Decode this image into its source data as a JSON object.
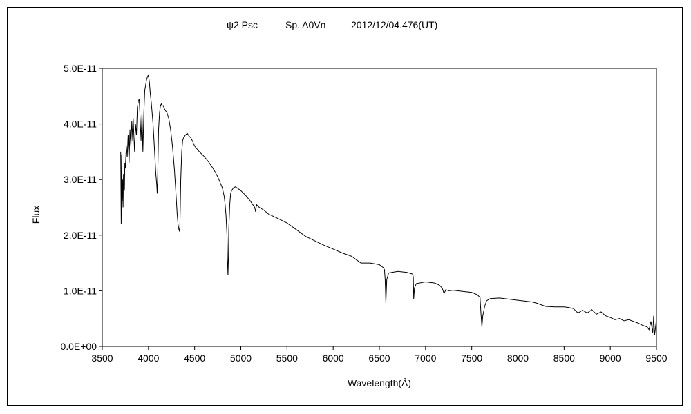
{
  "chart_data": {
    "type": "line",
    "title": "ψ2 Psc Sp. A0Vn 2012/12/04.476(UT)",
    "title_parts": [
      "ψ2 Psc",
      "Sp. A0Vn",
      "2012/12/04.476(UT)"
    ],
    "xlabel": "Wavelength(Å)",
    "ylabel": "Flux",
    "xlim": [
      3500,
      9500
    ],
    "ylim": [
      0,
      5e-11
    ],
    "xticks": [
      3500,
      4000,
      4500,
      5000,
      5500,
      6000,
      6500,
      7000,
      7500,
      8000,
      8500,
      9000,
      9500
    ],
    "xtick_labels": [
      "3500",
      "4000",
      "4500",
      "5000",
      "5500",
      "6000",
      "6500",
      "7000",
      "7500",
      "8000",
      "8500",
      "9000",
      "9500"
    ],
    "yticks": [
      0,
      1e-11,
      2e-11,
      3e-11,
      4e-11,
      5e-11
    ],
    "ytick_labels": [
      "0.0E+00",
      "1.0E-11",
      "2.0E-11",
      "3.0E-11",
      "4.0E-11",
      "5.0E-11"
    ],
    "grid": false,
    "legend": "none",
    "line_color": "#000000",
    "series": [
      {
        "x": [
          3700,
          3705,
          3710,
          3715,
          3720,
          3725,
          3730,
          3740,
          3745,
          3750,
          3760,
          3770,
          3780,
          3790,
          3800,
          3810,
          3820,
          3830,
          3835,
          3840,
          3850,
          3860,
          3870,
          3880,
          3890,
          3900,
          3910,
          3920,
          3930,
          3940,
          3950,
          3960,
          3970,
          3980,
          3990,
          4000,
          4010,
          4020,
          4030,
          4040,
          4050,
          4060,
          4070,
          4080,
          4090,
          4095,
          4100,
          4105,
          4110,
          4120,
          4130,
          4140,
          4150,
          4160,
          4170,
          4180,
          4200,
          4220,
          4240,
          4260,
          4280,
          4300,
          4310,
          4320,
          4330,
          4335,
          4340,
          4345,
          4350,
          4360,
          4370,
          4380,
          4400,
          4420,
          4440,
          4460,
          4480,
          4500,
          4550,
          4600,
          4650,
          4700,
          4750,
          4800,
          4820,
          4830,
          4840,
          4850,
          4855,
          4861,
          4866,
          4870,
          4880,
          4890,
          4900,
          4920,
          4940,
          4960,
          5000,
          5050,
          5100,
          5150,
          5160,
          5170,
          5200,
          5250,
          5300,
          5400,
          5500,
          5600,
          5700,
          5800,
          5900,
          6000,
          6100,
          6200,
          6250,
          6300,
          6400,
          6500,
          6540,
          6555,
          6563,
          6570,
          6580,
          6600,
          6700,
          6800,
          6860,
          6867,
          6872,
          6880,
          6900,
          7000,
          7100,
          7150,
          7180,
          7200,
          7220,
          7250,
          7300,
          7400,
          7500,
          7560,
          7590,
          7600,
          7610,
          7620,
          7640,
          7660,
          7700,
          7800,
          7900,
          8000,
          8100,
          8150,
          8200,
          8300,
          8400,
          8500,
          8550,
          8600,
          8650,
          8700,
          8750,
          8800,
          8850,
          8900,
          8950,
          9000,
          9050,
          9100,
          9150,
          9200,
          9250,
          9300,
          9350,
          9400,
          9420,
          9440,
          9460,
          9470,
          9480,
          9490,
          9500
        ],
        "y": [
          3.5e-11,
          2.2e-11,
          3.45e-11,
          2.6e-11,
          3e-11,
          2.5e-11,
          3.1e-11,
          2.8e-11,
          3.3e-11,
          3.2e-11,
          3.6e-11,
          3.4e-11,
          3.8e-11,
          3.3e-11,
          3.9e-11,
          3.6e-11,
          4.05e-11,
          3.7e-11,
          4.1e-11,
          3.9e-11,
          3.5e-11,
          4e-11,
          3.8e-11,
          4.3e-11,
          4.4e-11,
          4.45e-11,
          4.1e-11,
          3.7e-11,
          4.2e-11,
          3.5e-11,
          4.2e-11,
          4.6e-11,
          4.7e-11,
          4.8e-11,
          4.85e-11,
          4.88e-11,
          4.75e-11,
          4.55e-11,
          4.4e-11,
          4.2e-11,
          4e-11,
          3.7e-11,
          3.4e-11,
          3.1e-11,
          2.9e-11,
          2.75e-11,
          3.05e-11,
          3.5e-11,
          3.9e-11,
          4.2e-11,
          4.33e-11,
          4.36e-11,
          4.32e-11,
          4.33e-11,
          4.28e-11,
          4.25e-11,
          4.2e-11,
          4.1e-11,
          3.9e-11,
          3.6e-11,
          3.2e-11,
          2.7e-11,
          2.4e-11,
          2.2e-11,
          2.1e-11,
          2.08e-11,
          2.15e-11,
          2.5e-11,
          3e-11,
          3.5e-11,
          3.7e-11,
          3.75e-11,
          3.8e-11,
          3.83e-11,
          3.78e-11,
          3.75e-11,
          3.68e-11,
          3.6e-11,
          3.5e-11,
          3.42e-11,
          3.32e-11,
          3.2e-11,
          3.05e-11,
          2.85e-11,
          2.7e-11,
          2.55e-11,
          2.35e-11,
          2e-11,
          1.6e-11,
          1.28e-11,
          1.6e-11,
          2.1e-11,
          2.55e-11,
          2.75e-11,
          2.8e-11,
          2.85e-11,
          2.87e-11,
          2.85e-11,
          2.8e-11,
          2.72e-11,
          2.62e-11,
          2.5e-11,
          2.42e-11,
          2.55e-11,
          2.5e-11,
          2.45e-11,
          2.38e-11,
          2.3e-11,
          2.22e-11,
          2.1e-11,
          1.98e-11,
          1.9e-11,
          1.82e-11,
          1.75e-11,
          1.68e-11,
          1.62e-11,
          1.56e-11,
          1.5e-11,
          1.5e-11,
          1.47e-11,
          1.42e-11,
          1.38e-11,
          1.2e-11,
          7.8e-12,
          1.2e-11,
          1.32e-11,
          1.35e-11,
          1.33e-11,
          1.3e-11,
          1.25e-11,
          8.5e-12,
          1.05e-11,
          1.13e-11,
          1.16e-11,
          1.14e-11,
          1.1e-11,
          1.05e-11,
          9.5e-12,
          1.02e-11,
          1e-11,
          1.01e-11,
          9.9e-12,
          9.7e-12,
          9.3e-12,
          8.8e-12,
          6e-12,
          3.5e-12,
          5.5e-12,
          7.2e-12,
          8.2e-12,
          8.6e-12,
          8.7e-12,
          8.5e-12,
          8.3e-12,
          8.1e-12,
          8e-12,
          7.8e-12,
          7.2e-12,
          7.1e-12,
          7.1e-12,
          7e-12,
          6.8e-12,
          6e-12,
          6.5e-12,
          6e-12,
          6.6e-12,
          5.8e-12,
          6.2e-12,
          5.5e-12,
          5.2e-12,
          4.8e-12,
          5e-12,
          4.6e-12,
          4.8e-12,
          4.5e-12,
          4.2e-12,
          3.8e-12,
          3.5e-12,
          3e-12,
          4.5e-12,
          2.5e-12,
          5.5e-12,
          2e-12,
          3.5e-12,
          5e-12
        ]
      }
    ]
  }
}
